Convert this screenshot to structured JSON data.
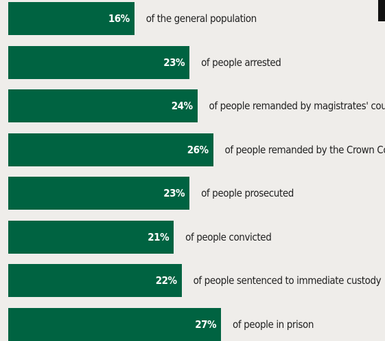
{
  "chart_data": {
    "type": "bar",
    "orientation": "horizontal",
    "unit": "%",
    "colors": {
      "bar": "#006341",
      "value_text": "#ffffff",
      "label_text": "#1f1f1f",
      "background": "#efedea"
    },
    "xlim": [
      0,
      27
    ],
    "categories": [
      "of the general population",
      "of people arrested",
      "of people remanded by magistrates' courts",
      "of people remanded by the Crown Court",
      "of people prosecuted",
      "of people convicted",
      "of people sentenced to immediate custody",
      "of people in prison"
    ],
    "values": [
      16,
      23,
      24,
      26,
      23,
      21,
      22,
      27
    ],
    "value_labels": [
      "16%",
      "23%",
      "24%",
      "26%",
      "23%",
      "21%",
      "22%",
      "27%"
    ]
  }
}
